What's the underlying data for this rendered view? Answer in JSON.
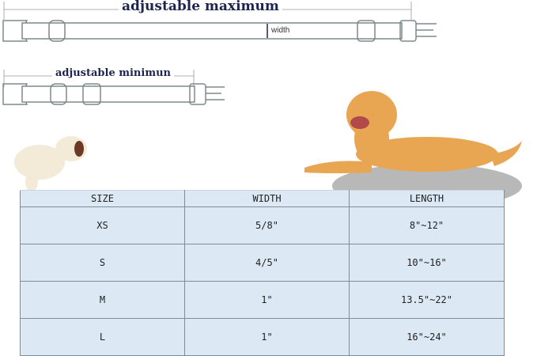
{
  "collar_diagram": {
    "max_label": "adjustable maximum",
    "min_label": "adjustable minimun",
    "width_label": "width"
  },
  "size_table": {
    "headers": [
      "SIZE",
      "WIDTH",
      "LENGTH"
    ],
    "rows": [
      [
        "XS",
        "5/8\"",
        "8\"~12\""
      ],
      [
        "S",
        "4/5\"",
        "10\"~16\""
      ],
      [
        "M",
        "1\"",
        "13.5\"~22\""
      ],
      [
        "L",
        "1\"",
        "16\"~24\""
      ]
    ]
  },
  "colors": {
    "table_bg": "#dce9f5",
    "label_text": "#1e2450",
    "dog_golden": "#e8a653"
  }
}
